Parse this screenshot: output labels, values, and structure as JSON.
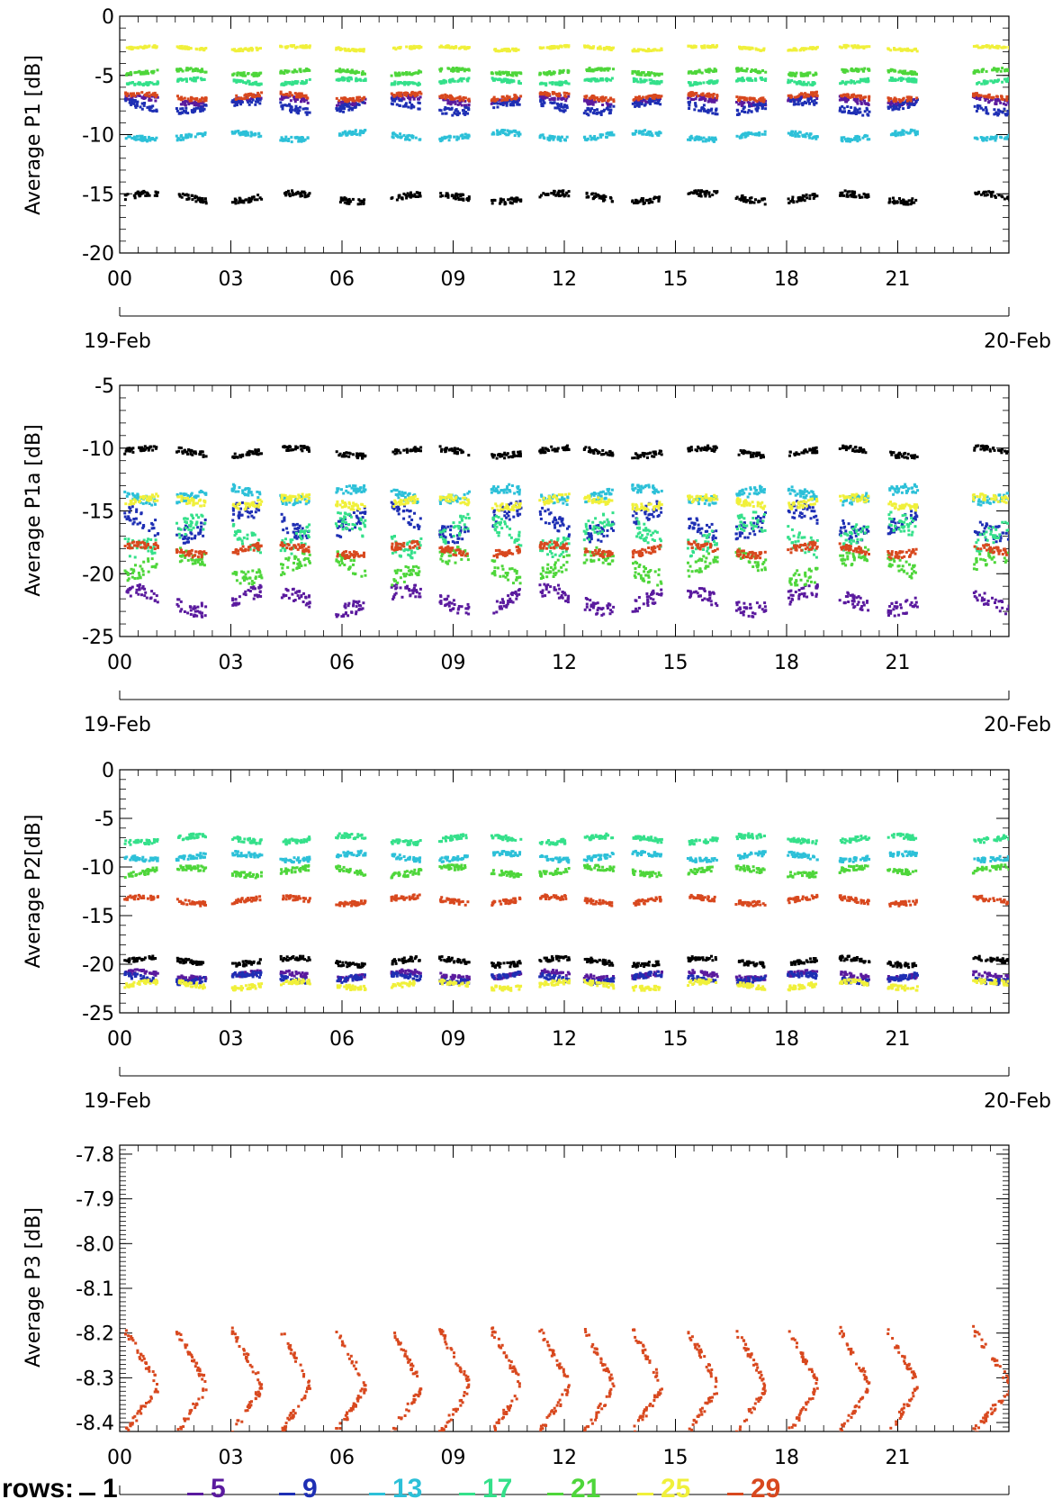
{
  "chart_data": [
    {
      "type": "scatter",
      "ylabel": "Average P1 [dB]",
      "ylim": [
        -20,
        0
      ],
      "yticks": [
        "0",
        "-5",
        "-10",
        "-15",
        "-20"
      ],
      "xticks": [
        "00",
        "03",
        "06",
        "09",
        "12",
        "15",
        "18",
        "21"
      ],
      "date_start": "19-Feb",
      "date_end": "20-Feb",
      "series": [
        {
          "name": "1",
          "level": -15.2,
          "spread": 0.35
        },
        {
          "name": "5",
          "level": -7.0,
          "spread": 0.3
        },
        {
          "name": "9",
          "level": -7.5,
          "spread": 0.45
        },
        {
          "name": "13",
          "level": -10.0,
          "spread": 0.3
        },
        {
          "name": "17",
          "level": -5.4,
          "spread": 0.2
        },
        {
          "name": "21",
          "level": -4.6,
          "spread": 0.2
        },
        {
          "name": "25",
          "level": -2.6,
          "spread": 0.15
        },
        {
          "name": "29",
          "level": -6.7,
          "spread": 0.25
        }
      ]
    },
    {
      "type": "scatter",
      "ylabel": "Average P1a [dB]",
      "ylim": [
        -25,
        -5
      ],
      "yticks": [
        "-5",
        "-10",
        "-15",
        "-20",
        "-25"
      ],
      "xticks": [
        "00",
        "03",
        "06",
        "09",
        "12",
        "15",
        "18",
        "21"
      ],
      "date_start": "19-Feb",
      "date_end": "20-Feb",
      "series": [
        {
          "name": "1",
          "level": -10.2,
          "spread": 0.3
        },
        {
          "name": "5",
          "level": -22.0,
          "spread": 0.8
        },
        {
          "name": "9",
          "level": -15.8,
          "spread": 1.0
        },
        {
          "name": "13",
          "level": -13.6,
          "spread": 0.5
        },
        {
          "name": "17",
          "level": -16.8,
          "spread": 1.1
        },
        {
          "name": "21",
          "level": -19.3,
          "spread": 0.9
        },
        {
          "name": "25",
          "level": -14.2,
          "spread": 0.4
        },
        {
          "name": "29",
          "level": -18.0,
          "spread": 0.4
        }
      ]
    },
    {
      "type": "scatter",
      "ylabel": "Average P2[dB]",
      "ylim": [
        -25,
        0
      ],
      "yticks": [
        "0",
        "-5",
        "-10",
        "-15",
        "-20",
        "-25"
      ],
      "xticks": [
        "00",
        "03",
        "06",
        "09",
        "12",
        "15",
        "18",
        "21"
      ],
      "date_start": "19-Feb",
      "date_end": "20-Feb",
      "series": [
        {
          "name": "1",
          "level": -19.6,
          "spread": 0.35
        },
        {
          "name": "5",
          "level": -21.0,
          "spread": 0.35
        },
        {
          "name": "9",
          "level": -21.3,
          "spread": 0.4
        },
        {
          "name": "13",
          "level": -8.8,
          "spread": 0.35
        },
        {
          "name": "17",
          "level": -7.0,
          "spread": 0.35
        },
        {
          "name": "21",
          "level": -10.3,
          "spread": 0.4
        },
        {
          "name": "25",
          "level": -22.0,
          "spread": 0.35
        },
        {
          "name": "29",
          "level": -13.3,
          "spread": 0.35
        }
      ]
    },
    {
      "type": "scatter",
      "ylabel": "Average P3 [dB]",
      "ylim": [
        -8.42,
        -7.78
      ],
      "yticks": [
        "-7.8",
        "-7.9",
        "-8.0",
        "-8.1",
        "-8.2",
        "-8.3",
        "-8.4"
      ],
      "ytick_values": [
        -7.8,
        -7.9,
        -8.0,
        -8.1,
        -8.2,
        -8.3,
        -8.4
      ],
      "xticks": [
        "00",
        "03",
        "06",
        "09",
        "12",
        "15",
        "18",
        "21"
      ],
      "date_start": "19-Feb",
      "date_end": "20-Feb",
      "series": [
        {
          "name": "29",
          "level": -8.3,
          "spread": 0.1
        }
      ]
    }
  ],
  "legend": {
    "title": "rows:",
    "entries": [
      {
        "label": "1",
        "color": "#000000"
      },
      {
        "label": "5",
        "color": "#5a1a9e"
      },
      {
        "label": "9",
        "color": "#1e2fb4"
      },
      {
        "label": "13",
        "color": "#2cc0d8"
      },
      {
        "label": "17",
        "color": "#34e08a"
      },
      {
        "label": "21",
        "color": "#4ed63a"
      },
      {
        "label": "25",
        "color": "#f0f03a"
      },
      {
        "label": "29",
        "color": "#d8481e"
      }
    ]
  }
}
